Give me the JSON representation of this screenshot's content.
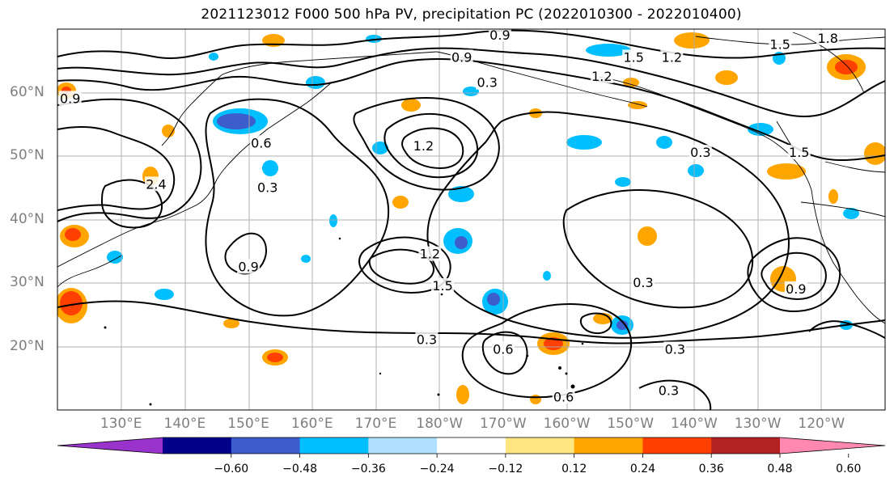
{
  "title": "2021123012 F000 500 hPa PV, precipitation PC (2022010300 - 2022010400)",
  "lat_labels": [
    {
      "text": "60°N",
      "lat": 60
    },
    {
      "text": "50°N",
      "lat": 50
    },
    {
      "text": "40°N",
      "lat": 40
    },
    {
      "text": "30°N",
      "lat": 30
    },
    {
      "text": "20°N",
      "lat": 20
    }
  ],
  "lon_labels": [
    {
      "text": "130°E",
      "lon": 130
    },
    {
      "text": "140°E",
      "lon": 140
    },
    {
      "text": "150°E",
      "lon": 150
    },
    {
      "text": "160°E",
      "lon": 160
    },
    {
      "text": "170°E",
      "lon": 170
    },
    {
      "text": "180°W",
      "lon": 180
    },
    {
      "text": "170°W",
      "lon": 190
    },
    {
      "text": "160°W",
      "lon": 200
    },
    {
      "text": "150°W",
      "lon": 210
    },
    {
      "text": "140°W",
      "lon": 220
    },
    {
      "text": "130°W",
      "lon": 230
    },
    {
      "text": "120°W",
      "lon": 240
    }
  ],
  "map_extent": {
    "lon_min": 120,
    "lon_max": 250,
    "lat_min": 10,
    "lat_max": 70
  },
  "colorbar": {
    "ticks": [
      "−0.60",
      "−0.48",
      "−0.36",
      "−0.24",
      "−0.12",
      "0.12",
      "0.24",
      "0.36",
      "0.48",
      "0.60"
    ],
    "colors": [
      "#9933cc",
      "#00008b",
      "#3d5dcc",
      "#00bfff",
      "#b0e0ff",
      "#ffffff",
      "#ffe680",
      "#ffa500",
      "#ff4000",
      "#b22222",
      "#ff88b0"
    ]
  },
  "contour_labels": [
    {
      "text": "0.9",
      "lon": 189.5,
      "lat": 69
    },
    {
      "text": "1.8",
      "lon": 241,
      "lat": 68.5
    },
    {
      "text": "1.5",
      "lon": 233.5,
      "lat": 67.5
    },
    {
      "text": "1.5",
      "lon": 210.5,
      "lat": 65.5
    },
    {
      "text": "1.2",
      "lon": 216.5,
      "lat": 65.5
    },
    {
      "text": "0.9",
      "lon": 183.5,
      "lat": 65.5
    },
    {
      "text": "1.2",
      "lon": 205.5,
      "lat": 62.5
    },
    {
      "text": "0.3",
      "lon": 187.5,
      "lat": 61.5
    },
    {
      "text": "0.9",
      "lon": 122,
      "lat": 59
    },
    {
      "text": "0.6",
      "lon": 152,
      "lat": 52
    },
    {
      "text": "1.2",
      "lon": 177.5,
      "lat": 51.5
    },
    {
      "text": "0.3",
      "lon": 221,
      "lat": 50.5
    },
    {
      "text": "1.5",
      "lon": 236.5,
      "lat": 50.5
    },
    {
      "text": "2.4",
      "lon": 135.5,
      "lat": 45.5
    },
    {
      "text": "0.3",
      "lon": 153,
      "lat": 45
    },
    {
      "text": "1.2",
      "lon": 178.5,
      "lat": 34.5
    },
    {
      "text": "0.9",
      "lon": 150,
      "lat": 32.5
    },
    {
      "text": "1.5",
      "lon": 180.5,
      "lat": 29.5
    },
    {
      "text": "0.3",
      "lon": 212,
      "lat": 30
    },
    {
      "text": "0.9",
      "lon": 236,
      "lat": 29
    },
    {
      "text": "0.3",
      "lon": 178,
      "lat": 21
    },
    {
      "text": "0.6",
      "lon": 190,
      "lat": 19.5
    },
    {
      "text": "0.3",
      "lon": 217,
      "lat": 19.5
    },
    {
      "text": "0.3",
      "lon": 216,
      "lat": 13
    },
    {
      "text": "0.6",
      "lon": 199.5,
      "lat": 12
    }
  ]
}
